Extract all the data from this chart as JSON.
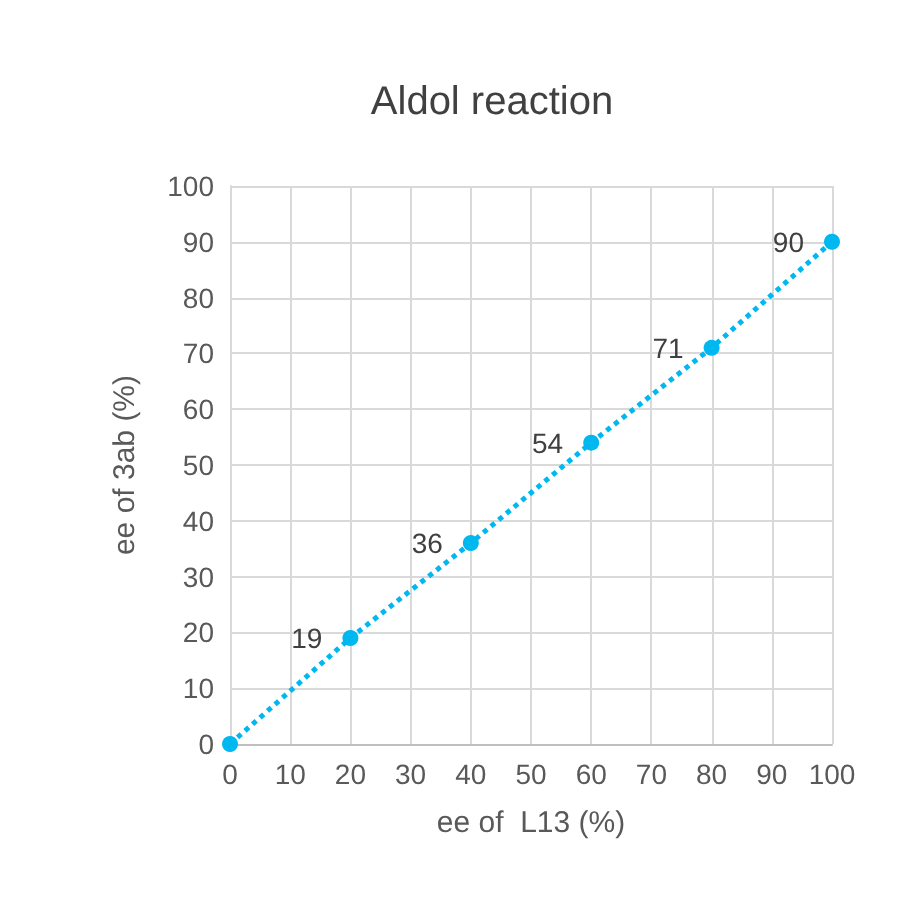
{
  "chart_data": {
    "type": "line",
    "title": "Aldol reaction",
    "xlabel": "ee of  L13 (%)",
    "ylabel": "ee of 3ab (%)",
    "x": [
      0,
      20,
      40,
      60,
      80,
      100
    ],
    "series": [
      {
        "color": "#00b8f0",
        "values": [
          0,
          19,
          36,
          54,
          71,
          90
        ],
        "value_labels": [
          null,
          "19",
          "36",
          "54",
          "71",
          "90"
        ]
      }
    ],
    "xlim": [
      0,
      100
    ],
    "xticks": [
      0,
      10,
      20,
      30,
      40,
      50,
      60,
      70,
      80,
      90,
      100
    ],
    "ylim": [
      0,
      100
    ],
    "yticks": [
      0,
      10,
      20,
      30,
      40,
      50,
      60,
      70,
      80,
      90,
      100
    ],
    "grid": true,
    "marker": "circle",
    "line_style": "dotted"
  }
}
